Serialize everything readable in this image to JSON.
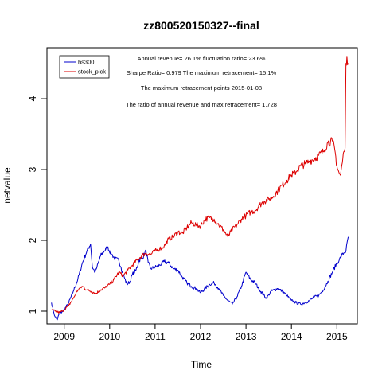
{
  "chart_data": {
    "type": "line",
    "title": "zz800520150327--final",
    "xlabel": "Time",
    "ylabel": "netvalue",
    "xlim": [
      2008.62,
      2015.45
    ],
    "ylim": [
      0.82,
      4.72
    ],
    "x_ticks": [
      2009,
      2010,
      2011,
      2012,
      2013,
      2014,
      2015
    ],
    "x_tick_labels": [
      "2009",
      "2010",
      "2011",
      "2012",
      "2013",
      "2014",
      "2015"
    ],
    "y_ticks": [
      1,
      2,
      3,
      4
    ],
    "y_tick_labels": [
      "1",
      "2",
      "3",
      "4"
    ],
    "grid": false,
    "legend_position": "top-left",
    "annotations": [
      "Annual revenue=  26.1% fluctuation ratio= 23.6%",
      "Sharpe Ratio= 0.979 The maximum retracement= 15.1%",
      "The maximum retracement points 2015-01-08",
      "The ratio of annual revenue and max retracement= 1.728"
    ],
    "series": [
      {
        "name": "hs300",
        "color": "#0000cc",
        "x": [
          2008.72,
          2008.77,
          2008.8,
          2008.85,
          2008.88,
          2008.95,
          2009.0,
          2009.1,
          2009.2,
          2009.3,
          2009.4,
          2009.5,
          2009.58,
          2009.62,
          2009.68,
          2009.72,
          2009.8,
          2009.88,
          2009.95,
          2010.05,
          2010.12,
          2010.2,
          2010.25,
          2010.32,
          2010.38,
          2010.45,
          2010.5,
          2010.58,
          2010.65,
          2010.72,
          2010.8,
          2010.85,
          2010.9,
          2011.0,
          2011.1,
          2011.2,
          2011.3,
          2011.4,
          2011.5,
          2011.6,
          2011.7,
          2011.8,
          2011.9,
          2012.0,
          2012.1,
          2012.2,
          2012.3,
          2012.4,
          2012.5,
          2012.6,
          2012.7,
          2012.8,
          2012.9,
          2013.0,
          2013.1,
          2013.2,
          2013.3,
          2013.45,
          2013.55,
          2013.7,
          2013.8,
          2013.9,
          2014.0,
          2014.1,
          2014.2,
          2014.3,
          2014.4,
          2014.5,
          2014.6,
          2014.7,
          2014.8,
          2014.9,
          2015.0,
          2015.05,
          2015.1,
          2015.15,
          2015.2,
          2015.25
        ],
        "values": [
          1.12,
          0.98,
          0.92,
          0.88,
          0.95,
          0.99,
          1.02,
          1.12,
          1.28,
          1.45,
          1.68,
          1.85,
          1.95,
          1.62,
          1.55,
          1.62,
          1.78,
          1.85,
          1.9,
          1.8,
          1.74,
          1.72,
          1.62,
          1.48,
          1.38,
          1.42,
          1.52,
          1.58,
          1.72,
          1.75,
          1.85,
          1.68,
          1.6,
          1.62,
          1.65,
          1.7,
          1.68,
          1.6,
          1.58,
          1.48,
          1.4,
          1.35,
          1.32,
          1.26,
          1.32,
          1.38,
          1.4,
          1.32,
          1.22,
          1.15,
          1.1,
          1.2,
          1.35,
          1.55,
          1.45,
          1.4,
          1.3,
          1.18,
          1.28,
          1.32,
          1.28,
          1.22,
          1.15,
          1.12,
          1.1,
          1.12,
          1.15,
          1.2,
          1.22,
          1.3,
          1.42,
          1.55,
          1.68,
          1.72,
          1.78,
          1.82,
          1.85,
          2.05
        ]
      },
      {
        "name": "stock_pick",
        "color": "#dd0000",
        "x": [
          2008.72,
          2008.8,
          2008.9,
          2009.0,
          2009.1,
          2009.2,
          2009.3,
          2009.4,
          2009.5,
          2009.6,
          2009.7,
          2009.8,
          2009.9,
          2010.0,
          2010.1,
          2010.2,
          2010.3,
          2010.4,
          2010.5,
          2010.6,
          2010.7,
          2010.8,
          2010.9,
          2011.0,
          2011.1,
          2011.2,
          2011.3,
          2011.4,
          2011.5,
          2011.6,
          2011.7,
          2011.8,
          2011.9,
          2012.0,
          2012.1,
          2012.2,
          2012.3,
          2012.4,
          2012.5,
          2012.6,
          2012.7,
          2012.8,
          2012.9,
          2013.0,
          2013.1,
          2013.2,
          2013.3,
          2013.4,
          2013.5,
          2013.6,
          2013.7,
          2013.8,
          2013.9,
          2014.0,
          2014.1,
          2014.2,
          2014.3,
          2014.4,
          2014.5,
          2014.6,
          2014.7,
          2014.8,
          2014.9,
          2014.95,
          2015.0,
          2015.05,
          2015.08,
          2015.12,
          2015.15,
          2015.18,
          2015.2,
          2015.22,
          2015.25
        ],
        "values": [
          1.02,
          1.0,
          0.98,
          1.02,
          1.08,
          1.18,
          1.3,
          1.35,
          1.3,
          1.28,
          1.25,
          1.3,
          1.33,
          1.38,
          1.45,
          1.55,
          1.5,
          1.58,
          1.65,
          1.72,
          1.78,
          1.82,
          1.8,
          1.85,
          1.88,
          1.92,
          2.02,
          2.05,
          2.12,
          2.1,
          2.18,
          2.25,
          2.22,
          2.2,
          2.3,
          2.32,
          2.3,
          2.22,
          2.15,
          2.05,
          2.15,
          2.22,
          2.3,
          2.35,
          2.4,
          2.42,
          2.5,
          2.55,
          2.58,
          2.62,
          2.7,
          2.78,
          2.85,
          2.92,
          2.97,
          3.05,
          3.08,
          3.12,
          3.15,
          3.2,
          3.25,
          3.38,
          3.4,
          3.3,
          3.05,
          2.95,
          2.92,
          3.1,
          3.25,
          3.3,
          4.5,
          4.6,
          4.5
        ]
      }
    ]
  }
}
